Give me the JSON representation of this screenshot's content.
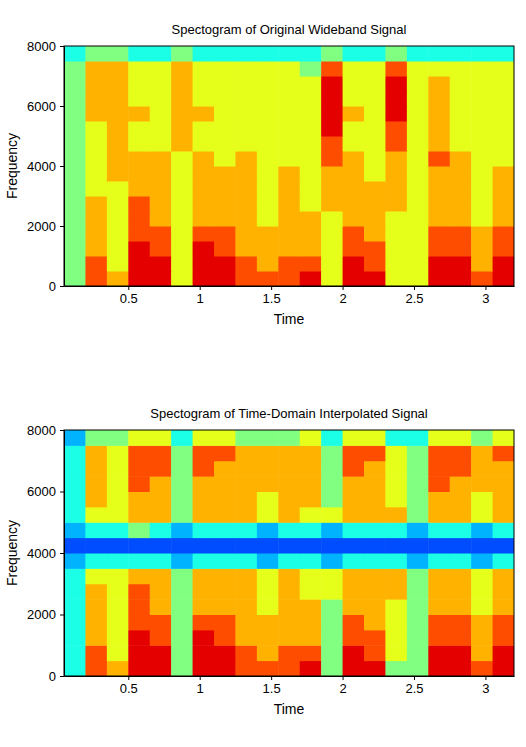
{
  "chart_data": [
    {
      "type": "heatmap",
      "title": "Spectogram of Original Wideband Signal",
      "x_label": "Time",
      "y_label": "Frequency",
      "xlim": [
        0.05,
        3.2
      ],
      "ylim": [
        0,
        8000
      ],
      "xticks": [
        0.5,
        1,
        1.5,
        2,
        2.5,
        3
      ],
      "yticks": [
        0,
        2000,
        4000,
        6000,
        8000
      ],
      "x_bins": [
        0.05,
        0.2,
        0.35,
        0.5,
        0.65,
        0.8,
        0.95,
        1.1,
        1.25,
        1.4,
        1.55,
        1.7,
        1.85,
        2,
        2.15,
        2.3,
        2.45,
        2.6,
        2.75,
        2.9,
        3.05,
        3.2
      ],
      "y_bins": [
        0,
        500,
        1000,
        1500,
        2000,
        2500,
        3000,
        3500,
        4000,
        4500,
        5000,
        5500,
        6000,
        6500,
        7000,
        7500,
        8000
      ],
      "zlim": [
        0,
        10
      ],
      "cells": [
        [
          5,
          8,
          7,
          9,
          9,
          6,
          9,
          9,
          8,
          8,
          8,
          9,
          6,
          9,
          9,
          6,
          6,
          9,
          9,
          8,
          9
        ],
        [
          5,
          8,
          6,
          9,
          9,
          6,
          9,
          9,
          8,
          7,
          8,
          8,
          6,
          9,
          8,
          6,
          6,
          9,
          9,
          7,
          9
        ],
        [
          5,
          7,
          6,
          9,
          8,
          6,
          9,
          8,
          7,
          7,
          7,
          7,
          6,
          8,
          8,
          6,
          6,
          8,
          8,
          7,
          8
        ],
        [
          5,
          7,
          6,
          8,
          8,
          6,
          8,
          8,
          7,
          7,
          7,
          7,
          6,
          8,
          7,
          6,
          6,
          8,
          8,
          7,
          8
        ],
        [
          5,
          7,
          6,
          8,
          7,
          6,
          7,
          7,
          7,
          6,
          7,
          7,
          6,
          7,
          7,
          6,
          6,
          7,
          7,
          6,
          7
        ],
        [
          5,
          7,
          6,
          8,
          7,
          6,
          7,
          7,
          7,
          6,
          7,
          6,
          7,
          7,
          7,
          7,
          6,
          7,
          7,
          6,
          7
        ],
        [
          5,
          6,
          6,
          7,
          7,
          6,
          7,
          7,
          7,
          6,
          7,
          6,
          7,
          7,
          7,
          7,
          6,
          7,
          7,
          6,
          7
        ],
        [
          5,
          6,
          7,
          7,
          7,
          6,
          7,
          7,
          7,
          6,
          7,
          6,
          7,
          7,
          6,
          7,
          6,
          7,
          7,
          6,
          7
        ],
        [
          5,
          6,
          7,
          7,
          7,
          6,
          7,
          6,
          7,
          6,
          6,
          6,
          8,
          7,
          6,
          7,
          6,
          8,
          7,
          6,
          6
        ],
        [
          5,
          6,
          7,
          6,
          6,
          7,
          6,
          6,
          6,
          6,
          6,
          6,
          8,
          6,
          6,
          8,
          6,
          7,
          6,
          6,
          6
        ],
        [
          5,
          6,
          7,
          6,
          6,
          7,
          6,
          6,
          6,
          6,
          6,
          6,
          9,
          6,
          6,
          8,
          6,
          7,
          6,
          6,
          6
        ],
        [
          5,
          7,
          7,
          7,
          6,
          7,
          7,
          6,
          6,
          6,
          6,
          6,
          9,
          7,
          6,
          9,
          6,
          7,
          6,
          6,
          6
        ],
        [
          5,
          7,
          7,
          6,
          6,
          7,
          6,
          6,
          6,
          6,
          6,
          6,
          9,
          6,
          6,
          9,
          6,
          7,
          6,
          6,
          6
        ],
        [
          5,
          7,
          7,
          6,
          6,
          7,
          6,
          6,
          6,
          6,
          6,
          6,
          9,
          6,
          6,
          9,
          6,
          7,
          6,
          6,
          6
        ],
        [
          5,
          7,
          7,
          6,
          6,
          7,
          6,
          6,
          6,
          6,
          6,
          5,
          8,
          6,
          6,
          8,
          6,
          6,
          6,
          6,
          6
        ],
        [
          4,
          5,
          5,
          4,
          4,
          5,
          4,
          4,
          4,
          4,
          4,
          4,
          5,
          4,
          4,
          5,
          4,
          4,
          4,
          4,
          4
        ]
      ]
    },
    {
      "type": "heatmap",
      "title": "Spectogram of Time-Domain Interpolated Signal",
      "x_label": "Time",
      "y_label": "Frequency",
      "xlim": [
        0.05,
        3.2
      ],
      "ylim": [
        0,
        8000
      ],
      "xticks": [
        0.5,
        1,
        1.5,
        2,
        2.5,
        3
      ],
      "yticks": [
        0,
        2000,
        4000,
        6000,
        8000
      ],
      "x_bins": [
        0.05,
        0.2,
        0.35,
        0.5,
        0.65,
        0.8,
        0.95,
        1.1,
        1.25,
        1.4,
        1.55,
        1.7,
        1.85,
        2,
        2.15,
        2.3,
        2.45,
        2.6,
        2.75,
        2.9,
        3.05,
        3.2
      ],
      "y_bins": [
        0,
        500,
        1000,
        1500,
        2000,
        2500,
        3000,
        3500,
        4000,
        4500,
        5000,
        5500,
        6000,
        6500,
        7000,
        7500,
        8000
      ],
      "zlim": [
        0,
        10
      ],
      "cells": [
        [
          4,
          8,
          7,
          9,
          9,
          5,
          9,
          9,
          8,
          8,
          8,
          9,
          5,
          9,
          9,
          5,
          5,
          9,
          9,
          8,
          9
        ],
        [
          4,
          8,
          6,
          9,
          9,
          5,
          9,
          9,
          8,
          7,
          8,
          8,
          5,
          9,
          8,
          6,
          5,
          9,
          9,
          7,
          9
        ],
        [
          4,
          7,
          6,
          9,
          8,
          5,
          9,
          8,
          7,
          7,
          7,
          7,
          5,
          8,
          8,
          6,
          5,
          8,
          8,
          7,
          8
        ],
        [
          4,
          7,
          6,
          8,
          8,
          5,
          8,
          8,
          7,
          7,
          7,
          7,
          5,
          8,
          7,
          6,
          5,
          8,
          8,
          7,
          8
        ],
        [
          4,
          7,
          6,
          8,
          7,
          5,
          7,
          7,
          7,
          6,
          7,
          7,
          5,
          7,
          7,
          6,
          5,
          7,
          7,
          6,
          7
        ],
        [
          4,
          7,
          6,
          8,
          7,
          5,
          7,
          7,
          7,
          6,
          7,
          6,
          6,
          7,
          7,
          7,
          5,
          7,
          7,
          6,
          7
        ],
        [
          4,
          6,
          6,
          7,
          7,
          5,
          7,
          7,
          7,
          6,
          7,
          6,
          6,
          7,
          7,
          7,
          5,
          7,
          7,
          6,
          7
        ],
        [
          3,
          4,
          4,
          4,
          4,
          3,
          4,
          4,
          4,
          3,
          4,
          4,
          3,
          4,
          4,
          4,
          3,
          4,
          4,
          3,
          4
        ],
        [
          2,
          2,
          2,
          2,
          2,
          2,
          2,
          2,
          2,
          2,
          2,
          2,
          2,
          2,
          2,
          2,
          2,
          2,
          2,
          2,
          2
        ],
        [
          3,
          4,
          4,
          5,
          4,
          3,
          4,
          4,
          4,
          3,
          4,
          4,
          3,
          4,
          4,
          4,
          3,
          4,
          4,
          3,
          4
        ],
        [
          4,
          6,
          6,
          7,
          7,
          5,
          7,
          7,
          7,
          6,
          7,
          6,
          6,
          7,
          7,
          7,
          5,
          7,
          7,
          6,
          7
        ],
        [
          4,
          7,
          6,
          7,
          7,
          5,
          7,
          7,
          7,
          6,
          7,
          7,
          5,
          7,
          7,
          6,
          5,
          7,
          7,
          6,
          7
        ],
        [
          4,
          7,
          6,
          8,
          7,
          5,
          7,
          7,
          7,
          7,
          7,
          7,
          5,
          7,
          7,
          6,
          5,
          8,
          7,
          7,
          7
        ],
        [
          4,
          7,
          6,
          8,
          8,
          5,
          8,
          7,
          7,
          7,
          7,
          7,
          5,
          8,
          7,
          6,
          5,
          8,
          8,
          7,
          7
        ],
        [
          4,
          7,
          6,
          8,
          8,
          5,
          8,
          8,
          7,
          7,
          7,
          7,
          5,
          8,
          8,
          6,
          5,
          8,
          8,
          7,
          8
        ],
        [
          3,
          5,
          5,
          6,
          6,
          4,
          6,
          6,
          5,
          5,
          5,
          6,
          4,
          6,
          6,
          4,
          4,
          6,
          6,
          5,
          6
        ]
      ]
    }
  ]
}
